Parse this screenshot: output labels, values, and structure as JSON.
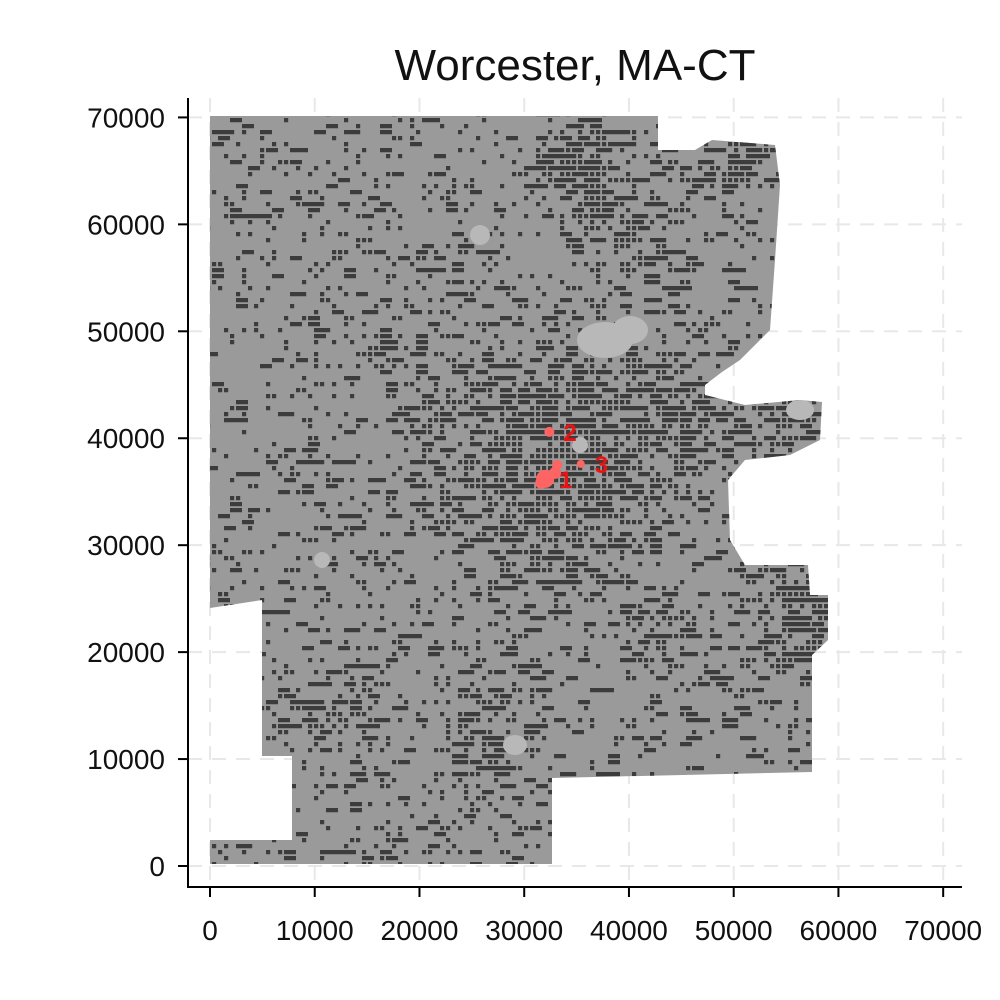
{
  "chart_data": {
    "type": "heatmap",
    "title": "Worcester, MA-CT",
    "xlabel": "",
    "ylabel": "",
    "xlim": [
      -2000,
      72000
    ],
    "ylim": [
      -2000,
      72000
    ],
    "x_ticks": [
      0,
      10000,
      20000,
      30000,
      40000,
      50000,
      60000,
      70000
    ],
    "y_ticks": [
      0,
      10000,
      20000,
      30000,
      40000,
      50000,
      60000,
      70000
    ],
    "x_tick_labels": [
      "0",
      "10000",
      "20000",
      "30000",
      "40000",
      "50000",
      "60000",
      "70000"
    ],
    "y_tick_labels": [
      "0",
      "10000",
      "20000",
      "30000",
      "40000",
      "50000",
      "60000",
      "70000"
    ],
    "grid": true,
    "legend": "none",
    "colors": {
      "region_fill": "#9a9a9a",
      "developed": "#3c3c3c",
      "light_patch": "#b8b8b8",
      "cluster": "#ff6464",
      "cluster_label": "#ee1111",
      "grid": "#e8e8e8",
      "axis": "#000000"
    },
    "clusters": [
      {
        "label": "1",
        "x": 32000,
        "y": 36200
      },
      {
        "label": "2",
        "x": 32400,
        "y": 40600
      },
      {
        "label": "3",
        "x": 35400,
        "y": 37600
      }
    ]
  }
}
